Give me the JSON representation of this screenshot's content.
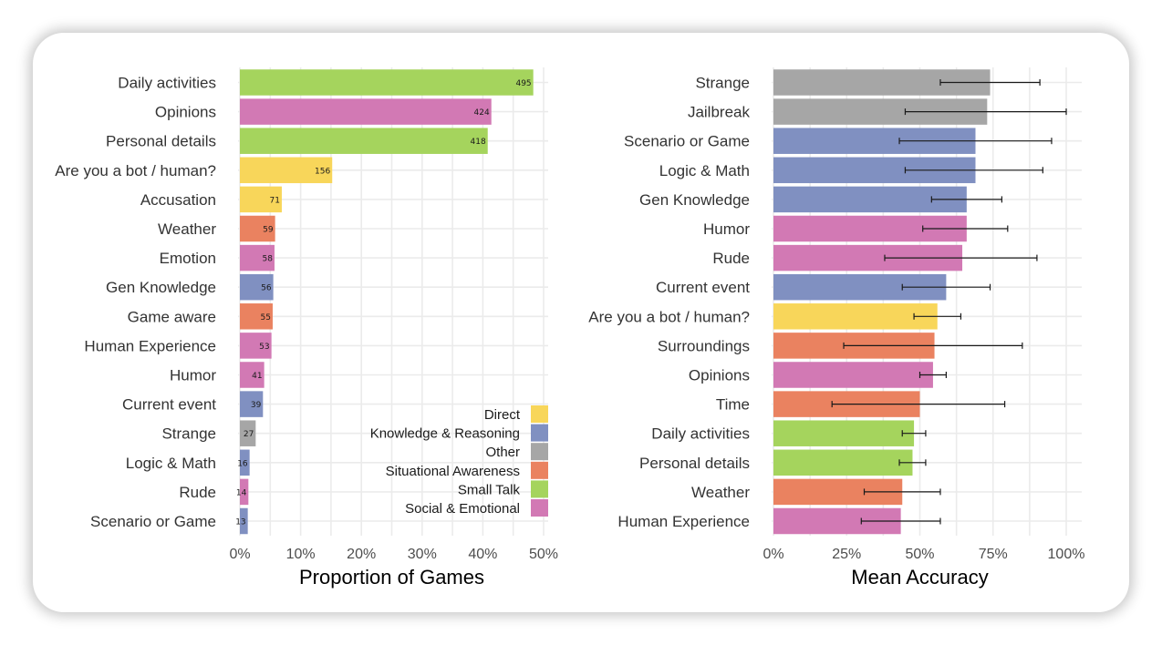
{
  "colors": {
    "Direct": "#f8d65a",
    "Knowledge & Reasoning": "#8090c1",
    "Other": "#a6a6a6",
    "Situational Awareness": "#ea8260",
    "Small Talk": "#a5d45d",
    "Social & Emotional": "#d279b4"
  },
  "chart_data": [
    {
      "type": "bar",
      "orientation": "horizontal",
      "xlabel": "Proportion of Games",
      "xlim": [
        0,
        0.5
      ],
      "xticks": [
        0,
        0.1,
        0.2,
        0.3,
        0.4,
        0.5
      ],
      "xtick_labels": [
        "0%",
        "10%",
        "20%",
        "30%",
        "40%",
        "50%"
      ],
      "categories": [
        "Daily activities",
        "Opinions",
        "Personal details",
        "Are you a bot / human?",
        "Accusation",
        "Weather",
        "Emotion",
        "Gen Knowledge",
        "Game aware",
        "Human Experience",
        "Humor",
        "Current event",
        "Strange",
        "Logic & Math",
        "Rude",
        "Scenario or Game"
      ],
      "values": [
        0.483,
        0.414,
        0.408,
        0.152,
        0.069,
        0.058,
        0.057,
        0.055,
        0.054,
        0.052,
        0.04,
        0.038,
        0.026,
        0.016,
        0.014,
        0.013
      ],
      "counts": [
        "495",
        "424",
        "418",
        "156",
        "71",
        "59",
        "58",
        "56",
        "55",
        "53",
        "41",
        "39",
        "27",
        "16",
        "14",
        "13"
      ],
      "groups": [
        "Small Talk",
        "Social & Emotional",
        "Small Talk",
        "Direct",
        "Direct",
        "Situational Awareness",
        "Social & Emotional",
        "Knowledge & Reasoning",
        "Situational Awareness",
        "Social & Emotional",
        "Social & Emotional",
        "Knowledge & Reasoning",
        "Other",
        "Knowledge & Reasoning",
        "Social & Emotional",
        "Knowledge & Reasoning"
      ],
      "legend": {
        "position": "bottom-right",
        "entries": [
          "Direct",
          "Knowledge & Reasoning",
          "Other",
          "Situational Awareness",
          "Small Talk",
          "Social & Emotional"
        ]
      }
    },
    {
      "type": "bar",
      "orientation": "horizontal",
      "xlabel": "Mean Accuracy",
      "xlim": [
        0,
        1
      ],
      "xticks": [
        0,
        0.25,
        0.5,
        0.75,
        1
      ],
      "xtick_labels": [
        "0%",
        "25%",
        "50%",
        "75%",
        "100%"
      ],
      "categories": [
        "Strange",
        "Jailbreak",
        "Scenario or Game",
        "Logic & Math",
        "Gen Knowledge",
        "Humor",
        "Rude",
        "Current event",
        "Are you a bot / human?",
        "Surroundings",
        "Opinions",
        "Time",
        "Daily activities",
        "Personal details",
        "Weather",
        "Human Experience"
      ],
      "values": [
        0.74,
        0.73,
        0.69,
        0.69,
        0.66,
        0.66,
        0.645,
        0.59,
        0.56,
        0.55,
        0.545,
        0.5,
        0.48,
        0.475,
        0.44,
        0.435
      ],
      "error_low": [
        0.57,
        0.45,
        0.43,
        0.45,
        0.54,
        0.51,
        0.38,
        0.44,
        0.48,
        0.24,
        0.5,
        0.2,
        0.44,
        0.43,
        0.31,
        0.3
      ],
      "error_high": [
        0.91,
        1.0,
        0.95,
        0.92,
        0.78,
        0.8,
        0.9,
        0.74,
        0.64,
        0.85,
        0.59,
        0.79,
        0.52,
        0.52,
        0.57,
        0.57
      ],
      "groups": [
        "Other",
        "Other",
        "Knowledge & Reasoning",
        "Knowledge & Reasoning",
        "Knowledge & Reasoning",
        "Social & Emotional",
        "Social & Emotional",
        "Knowledge & Reasoning",
        "Direct",
        "Situational Awareness",
        "Social & Emotional",
        "Situational Awareness",
        "Small Talk",
        "Small Talk",
        "Situational Awareness",
        "Social & Emotional"
      ]
    }
  ]
}
